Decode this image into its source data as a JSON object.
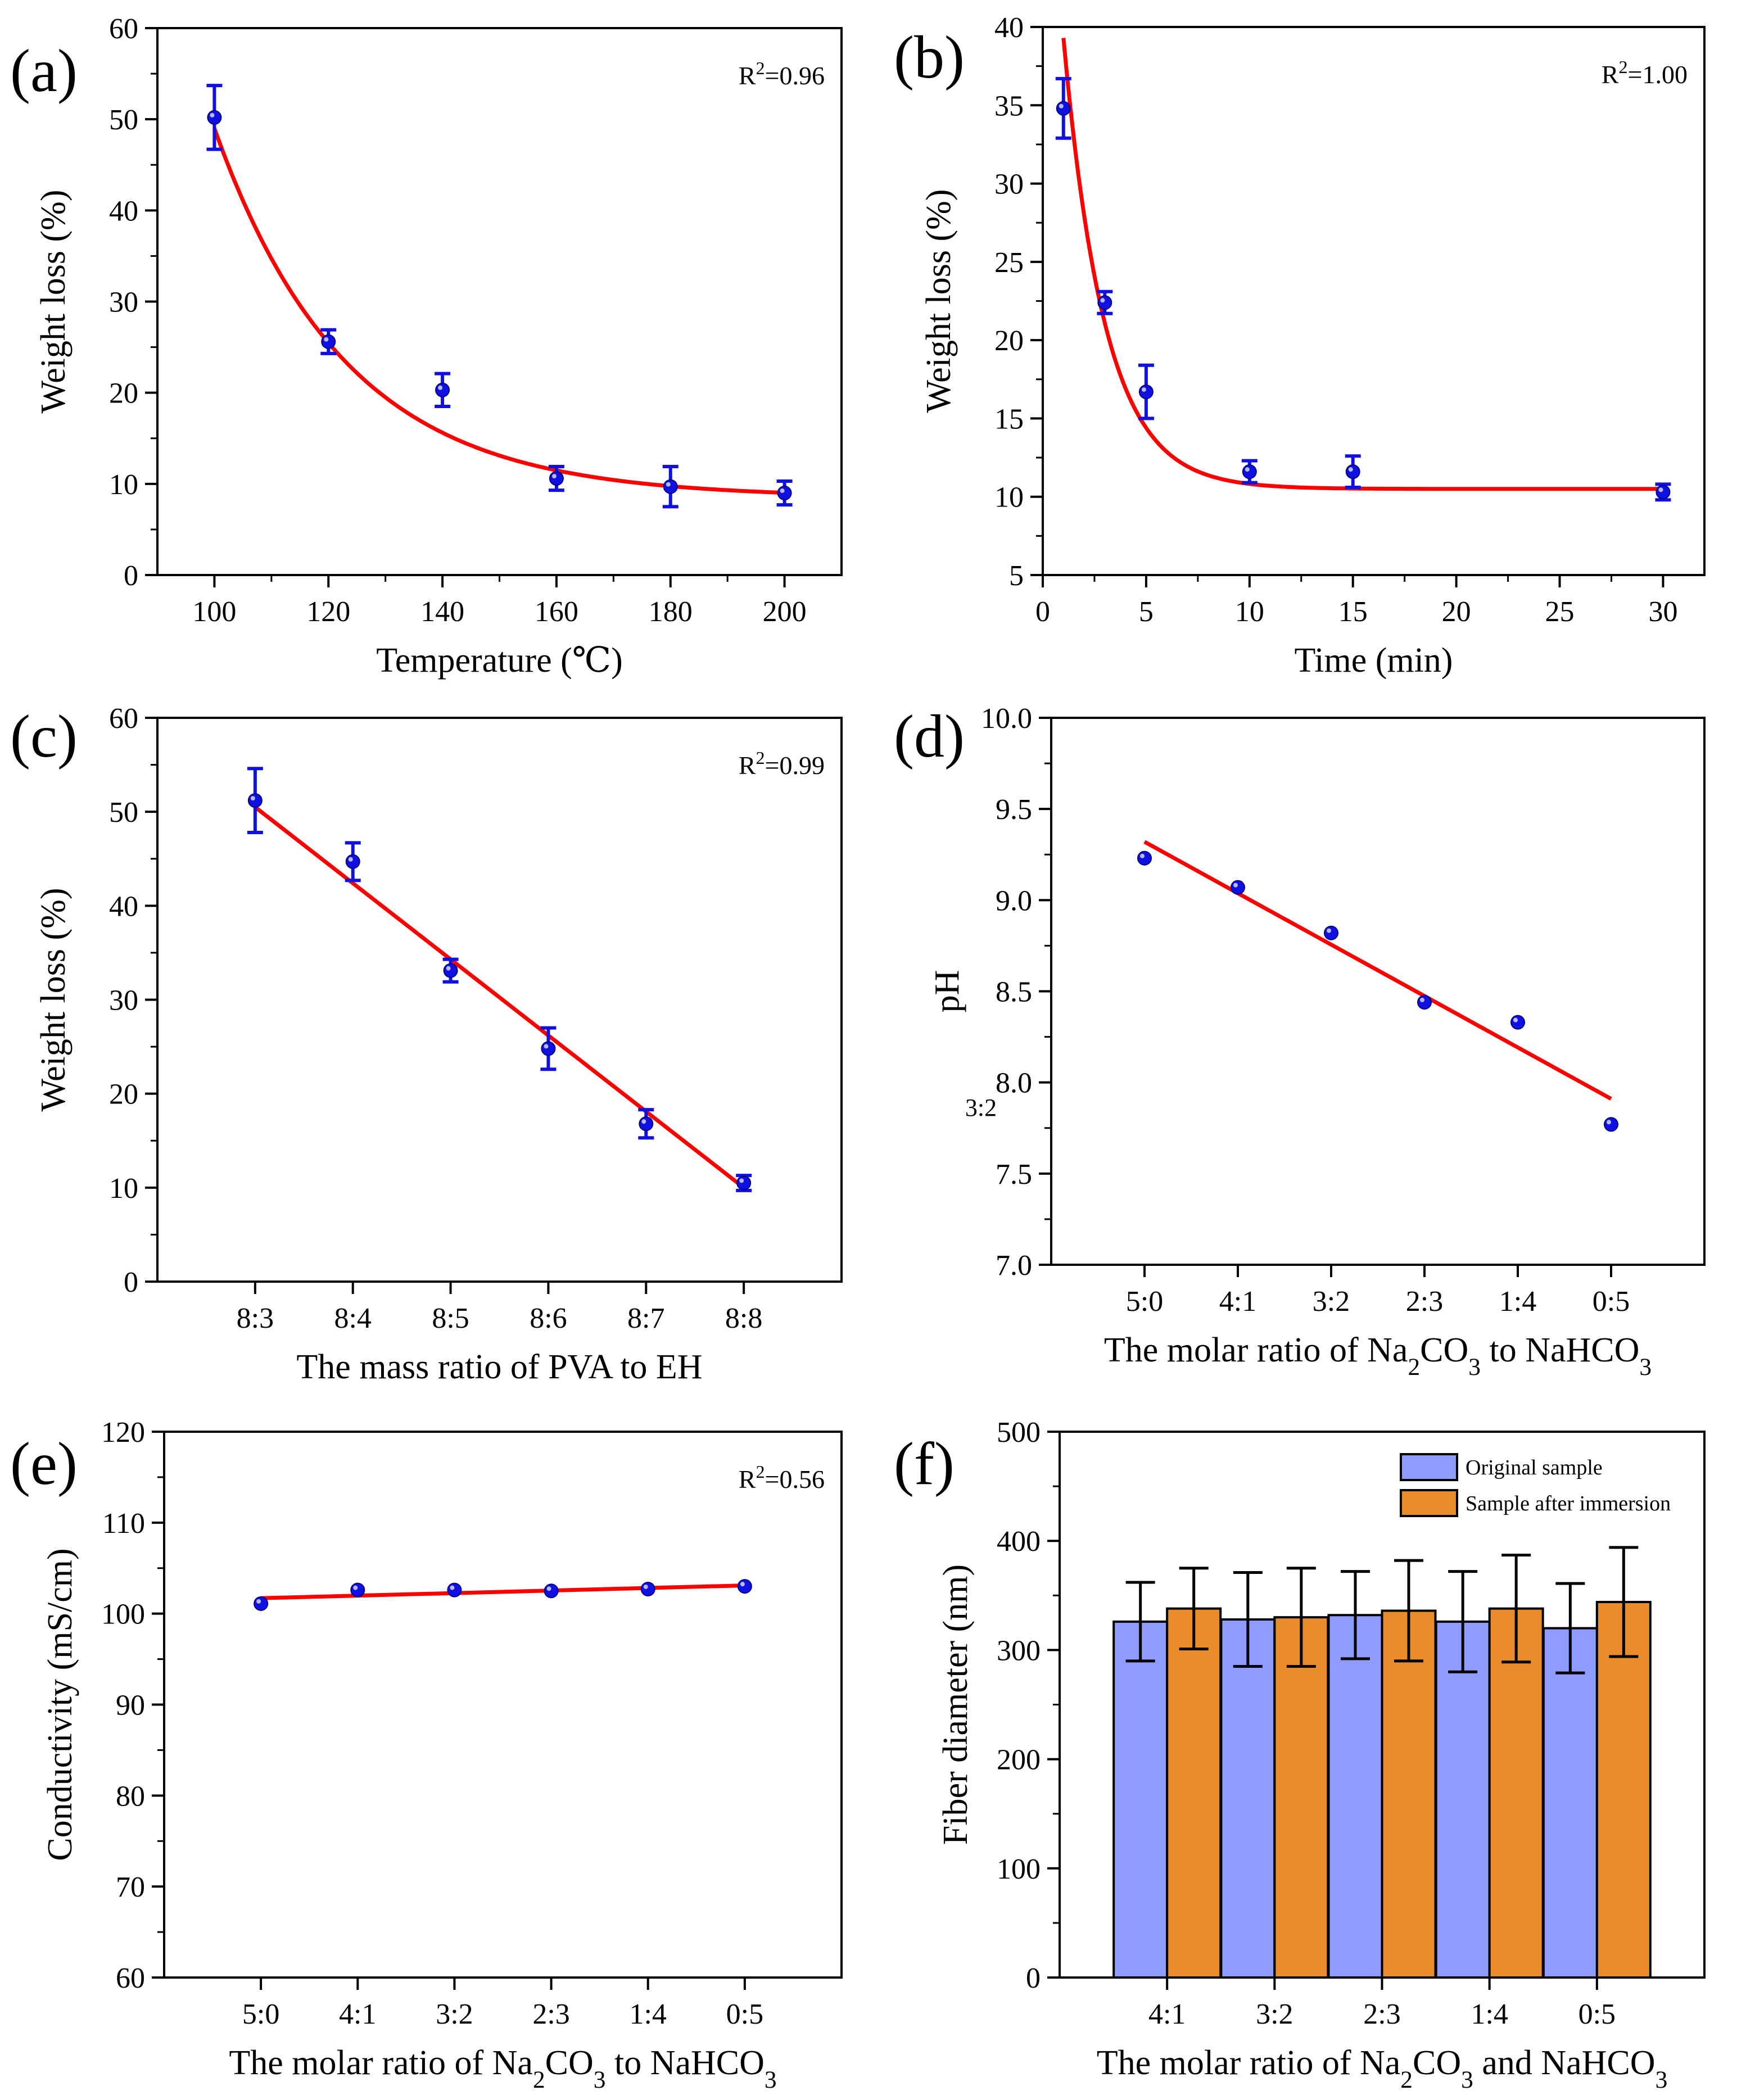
{
  "figure": {
    "panels": [
      {
        "label": "(a)",
        "annotation": "R²=0.96"
      },
      {
        "label": "(b)",
        "annotation": "R²=1.00"
      },
      {
        "label": "(c)",
        "annotation": "R²=0.99"
      },
      {
        "label": "(d)",
        "annotation": ""
      },
      {
        "label": "(e)",
        "annotation": "R²=0.56"
      },
      {
        "label": "(f)",
        "annotation": ""
      }
    ],
    "stray_text": "3:2"
  },
  "colors": {
    "fit_line": "#ff0000",
    "points": "#1010e0",
    "error_bars": "#1010e0",
    "bar_original": "#8f9cff",
    "bar_immersion": "#e98c2c",
    "axis": "#000000"
  },
  "chart_data": [
    {
      "type": "scatter",
      "panel": "(a)",
      "title": "",
      "xlabel": "Temperature (℃)",
      "ylabel": "Weight loss (%)",
      "x": [
        100,
        120,
        140,
        160,
        180,
        200
      ],
      "y": [
        50.2,
        25.6,
        20.3,
        10.6,
        9.7,
        9.0
      ],
      "yerr": [
        3.5,
        1.3,
        1.8,
        1.3,
        2.2,
        1.3
      ],
      "fit": {
        "kind": "exponential",
        "a": 40.5,
        "tau": 23,
        "c": 8.5,
        "r2_text": "R²=0.96"
      },
      "xlim": [
        90,
        210
      ],
      "ylim": [
        0,
        60
      ],
      "xticks": [
        100,
        120,
        140,
        160,
        180,
        200
      ],
      "yticks": [
        0,
        10,
        20,
        30,
        40,
        50,
        60
      ],
      "xtick_labels": [
        "100",
        "120",
        "140",
        "160",
        "180",
        "200"
      ],
      "ytick_labels": [
        "0",
        "10",
        "20",
        "30",
        "40",
        "50",
        "60"
      ]
    },
    {
      "type": "scatter",
      "panel": "(b)",
      "title": "",
      "xlabel": "Time (min)",
      "ylabel": "Weight loss (%)",
      "x": [
        1,
        3,
        5,
        10,
        15,
        30
      ],
      "y": [
        34.8,
        22.4,
        16.7,
        11.6,
        11.6,
        10.3
      ],
      "yerr": [
        1.9,
        0.7,
        1.7,
        0.7,
        1.0,
        0.5
      ],
      "fit": {
        "kind": "exponential",
        "a": 28.8,
        "tau": 2.0,
        "c": 10.5,
        "x0": 1,
        "r2_text": "R²=1.00"
      },
      "xlim": [
        0,
        32
      ],
      "ylim": [
        5,
        40
      ],
      "xticks": [
        0,
        5,
        10,
        15,
        20,
        25,
        30
      ],
      "yticks": [
        5,
        10,
        15,
        20,
        25,
        30,
        35,
        40
      ],
      "xtick_labels": [
        "0",
        "5",
        "10",
        "15",
        "20",
        "25",
        "30"
      ],
      "ytick_labels": [
        "5",
        "10",
        "15",
        "20",
        "25",
        "30",
        "35",
        "40"
      ]
    },
    {
      "type": "scatter",
      "panel": "(c)",
      "title": "",
      "xlabel": "The mass ratio of PVA to EH",
      "ylabel": "Weight loss (%)",
      "categories": [
        "8:3",
        "8:4",
        "8:5",
        "8:6",
        "8:7",
        "8:8"
      ],
      "y": [
        51.2,
        44.7,
        33.1,
        24.8,
        16.8,
        10.5
      ],
      "yerr": [
        3.4,
        2.0,
        1.2,
        2.2,
        1.5,
        0.8
      ],
      "fit": {
        "kind": "linear",
        "start": 50.5,
        "end": 10.0,
        "r2_text": "R²=0.99"
      },
      "ylim": [
        0,
        60
      ],
      "yticks": [
        0,
        10,
        20,
        30,
        40,
        50,
        60
      ],
      "ytick_labels": [
        "0",
        "10",
        "20",
        "30",
        "40",
        "50",
        "60"
      ]
    },
    {
      "type": "scatter",
      "panel": "(d)",
      "title": "",
      "xlabel_parts": [
        {
          "t": "The molar ratio of Na",
          "sub": false
        },
        {
          "t": "2",
          "sub": true
        },
        {
          "t": "CO",
          "sub": false
        },
        {
          "t": "3",
          "sub": true
        },
        {
          "t": " to NaHCO",
          "sub": false
        },
        {
          "t": "3",
          "sub": true
        }
      ],
      "ylabel": "pH",
      "categories": [
        "5:0",
        "4:1",
        "3:2",
        "2:3",
        "1:4",
        "0:5"
      ],
      "y": [
        9.23,
        9.07,
        8.82,
        8.44,
        8.33,
        7.77
      ],
      "fit": {
        "kind": "linear",
        "start": 9.32,
        "end": 7.91
      },
      "ylim": [
        7.0,
        10.0
      ],
      "yticks": [
        7.0,
        7.5,
        8.0,
        8.5,
        9.0,
        9.5,
        10.0
      ],
      "ytick_labels": [
        "7.0",
        "7.5",
        "8.0",
        "8.5",
        "9.0",
        "9.5",
        "10.0"
      ]
    },
    {
      "type": "scatter",
      "panel": "(e)",
      "title": "",
      "xlabel_parts": [
        {
          "t": "The molar ratio of Na",
          "sub": false
        },
        {
          "t": "2",
          "sub": true
        },
        {
          "t": "CO",
          "sub": false
        },
        {
          "t": "3",
          "sub": true
        },
        {
          "t": " to NaHCO",
          "sub": false
        },
        {
          "t": "3",
          "sub": true
        }
      ],
      "ylabel": "Conductivity (mS/cm)",
      "categories": [
        "5:0",
        "4:1",
        "3:2",
        "2:3",
        "1:4",
        "0:5"
      ],
      "y": [
        101.1,
        102.6,
        102.6,
        102.5,
        102.7,
        103.0
      ],
      "fit": {
        "kind": "linear",
        "start": 101.7,
        "end": 103.1,
        "r2_text": "R²=0.56"
      },
      "ylim": [
        60,
        120
      ],
      "yticks": [
        60,
        70,
        80,
        90,
        100,
        110,
        120
      ],
      "ytick_labels": [
        "60",
        "70",
        "80",
        "90",
        "100",
        "110",
        "120"
      ]
    },
    {
      "type": "bar",
      "panel": "(f)",
      "title": "",
      "xlabel_parts": [
        {
          "t": "The molar ratio of Na",
          "sub": false
        },
        {
          "t": "2",
          "sub": true
        },
        {
          "t": "CO",
          "sub": false
        },
        {
          "t": "3",
          "sub": true
        },
        {
          "t": " and NaHCO",
          "sub": false
        },
        {
          "t": "3",
          "sub": true
        }
      ],
      "ylabel": "Fiber diameter (nm)",
      "categories": [
        "4:1",
        "3:2",
        "2:3",
        "1:4",
        "0:5"
      ],
      "series": [
        {
          "name": "Original sample",
          "values": [
            326,
            328,
            332,
            326,
            320
          ],
          "err": [
            36,
            43,
            40,
            46,
            41
          ]
        },
        {
          "name": "Sample after immersion",
          "values": [
            338,
            330,
            336,
            338,
            344
          ],
          "err": [
            37,
            45,
            46,
            49,
            50
          ]
        }
      ],
      "legend": "top-right",
      "ylim": [
        0,
        500
      ],
      "yticks": [
        0,
        100,
        200,
        300,
        400,
        500
      ],
      "ytick_labels": [
        "0",
        "100",
        "200",
        "300",
        "400",
        "500"
      ]
    }
  ]
}
